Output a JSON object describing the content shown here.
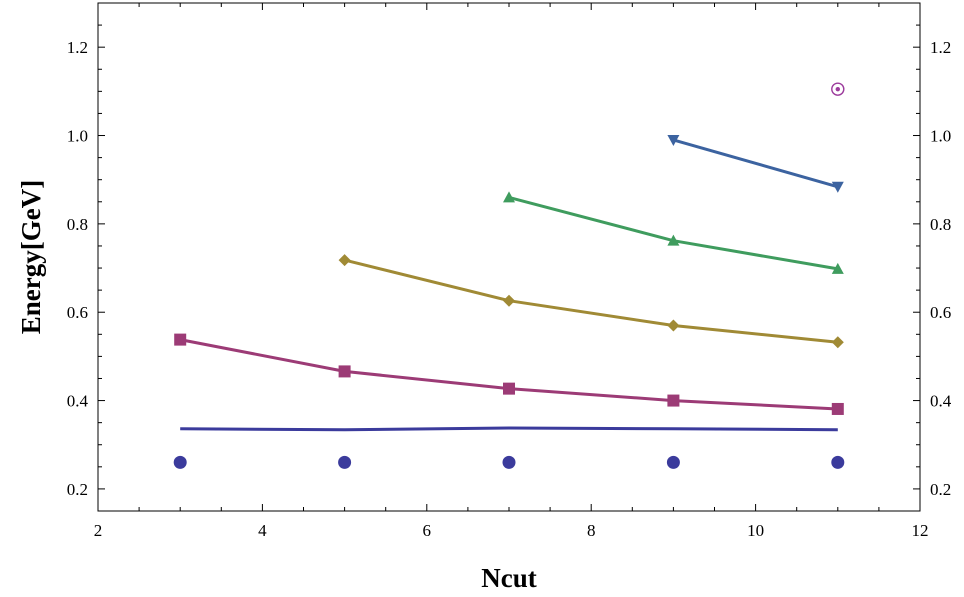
{
  "chart_data": {
    "type": "line",
    "title": "",
    "xlabel": "Ncut",
    "ylabel": "Energy[GeV]",
    "xlim": [
      2,
      12
    ],
    "ylim": [
      0.15,
      1.3
    ],
    "x_ticks": [
      2,
      4,
      6,
      8,
      10,
      12
    ],
    "x_tick_labels": [
      "2",
      "4",
      "6",
      "8",
      "10",
      "12"
    ],
    "y_ticks": [
      0.2,
      0.4,
      0.6,
      0.8,
      1.0,
      1.2
    ],
    "y_tick_labels": [
      "0.2",
      "0.4",
      "0.6",
      "0.8",
      "1.0",
      "1.2"
    ],
    "grid": false,
    "legend": "none",
    "series": [
      {
        "marker": "circle",
        "color": "#3b3b9c",
        "line": false,
        "x": [
          3,
          5,
          7,
          9,
          11
        ],
        "y": [
          0.26,
          0.26,
          0.26,
          0.26,
          0.26
        ]
      },
      {
        "marker": "none",
        "color": "#3b3b9c",
        "line": true,
        "x": [
          3,
          5,
          7,
          9,
          11
        ],
        "y": [
          0.336,
          0.334,
          0.338,
          0.336,
          0.334
        ]
      },
      {
        "marker": "square",
        "color": "#9c3b76",
        "line": true,
        "x": [
          3,
          5,
          7,
          9,
          11
        ],
        "y": [
          0.538,
          0.466,
          0.427,
          0.4,
          0.381
        ]
      },
      {
        "marker": "diamond",
        "color": "#a08a35",
        "line": true,
        "x": [
          5,
          7,
          9,
          11
        ],
        "y": [
          0.718,
          0.626,
          0.57,
          0.532
        ]
      },
      {
        "marker": "triangle-up",
        "color": "#3f9c5e",
        "line": true,
        "x": [
          7,
          9,
          11
        ],
        "y": [
          0.86,
          0.762,
          0.698
        ]
      },
      {
        "marker": "triangle-down",
        "color": "#3c63a0",
        "line": true,
        "x": [
          9,
          11
        ],
        "y": [
          0.99,
          0.884
        ]
      },
      {
        "marker": "circle-dot",
        "color": "#9c3b9c",
        "line": false,
        "x": [
          11
        ],
        "y": [
          1.105
        ]
      }
    ]
  }
}
